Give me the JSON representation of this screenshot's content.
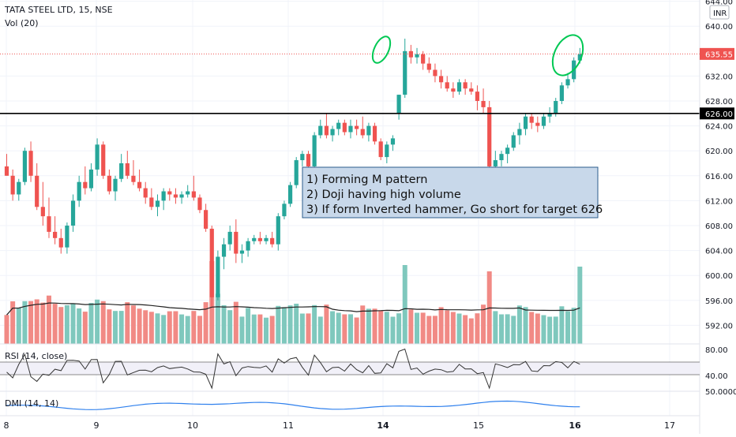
{
  "header": {
    "symbol_label": "TATA STEEL LTD, 15, NSE",
    "volume_label": "Vol (20)",
    "currency_badge": "INR"
  },
  "annotation": {
    "lines": [
      "1) Forming M pattern",
      "2) Doji having high volume",
      "3) If form Inverted hammer, Go short for target 626"
    ]
  },
  "price_tags": {
    "current": "635.55",
    "level": "626.00"
  },
  "panes": {
    "rsi_label": "RSI (14, close)",
    "dmi_label": "DMI (14, 14)",
    "rsi_ticks": [
      "80.00",
      "40.00"
    ],
    "dmi_tick": "50.0000"
  },
  "colors": {
    "up": "#26a69a",
    "down": "#ef5350",
    "vol_up": "#7fc8bd",
    "vol_down": "#f18a85",
    "level_line": "#000000",
    "current_line": "#ef5350",
    "annotation_bg": "#c8d8ea",
    "annotation_border": "#2b5d8c",
    "highlight_circle": "#00c853",
    "dmi_line": "#2f80ed",
    "rsi_line": "#333333"
  },
  "chart_data": {
    "type": "candlestick",
    "x_ticks": [
      "8",
      "9",
      "10",
      "11",
      "14",
      "15",
      "16",
      "17"
    ],
    "y_ticks": [
      644,
      640,
      632,
      628,
      624,
      620,
      616,
      612,
      608,
      604,
      600,
      596,
      592
    ],
    "ylim": [
      590,
      644
    ],
    "horizontal_level": 626.0,
    "current_price": 635.55,
    "candles": [
      [
        617.5,
        619.5,
        616,
        616
      ],
      [
        616,
        617,
        612,
        613
      ],
      [
        613,
        615.5,
        612,
        615
      ],
      [
        615,
        620.5,
        614.5,
        620
      ],
      [
        620,
        621.5,
        615,
        616
      ],
      [
        616,
        618,
        610.5,
        611
      ],
      [
        611,
        615,
        608,
        609.5
      ],
      [
        609.5,
        612.5,
        606,
        607
      ],
      [
        607,
        609.5,
        605,
        606
      ],
      [
        606,
        607.5,
        603.5,
        604.5
      ],
      [
        604.5,
        608.5,
        603.5,
        608
      ],
      [
        608,
        613,
        607,
        612
      ],
      [
        612,
        616,
        611,
        615
      ],
      [
        615,
        617.5,
        613,
        614
      ],
      [
        614,
        618,
        613.5,
        617
      ],
      [
        617,
        622,
        616,
        621
      ],
      [
        621,
        621.5,
        615.5,
        616
      ],
      [
        616,
        617,
        613,
        613.5
      ],
      [
        613.5,
        616,
        612,
        615.5
      ],
      [
        615.5,
        619.5,
        615,
        618
      ],
      [
        618,
        620,
        615.5,
        616
      ],
      [
        616,
        618.5,
        614.5,
        615
      ],
      [
        615,
        617,
        613.5,
        614
      ],
      [
        614,
        615,
        611.5,
        612.5
      ],
      [
        612.5,
        614,
        610.5,
        611
      ],
      [
        611,
        613,
        609.5,
        612
      ],
      [
        612,
        614,
        610.5,
        613.5
      ],
      [
        613.5,
        614,
        612,
        613
      ],
      [
        613,
        614,
        611.5,
        612.5
      ],
      [
        612.5,
        613.5,
        611.5,
        613
      ],
      [
        613,
        614.5,
        612.5,
        613.5
      ],
      [
        613.5,
        616,
        612,
        612.5
      ],
      [
        612.5,
        613,
        610,
        610.5
      ],
      [
        610.5,
        611.5,
        607,
        607.5
      ],
      [
        607.5,
        608,
        595,
        596.5
      ],
      [
        596.5,
        604,
        596,
        603
      ],
      [
        603,
        606,
        601,
        605
      ],
      [
        605,
        608,
        604,
        607
      ],
      [
        607,
        609,
        602,
        603.5
      ],
      [
        603.5,
        605,
        602,
        604
      ],
      [
        604,
        606,
        603,
        605.5
      ],
      [
        605.5,
        606.5,
        605,
        606
      ],
      [
        606,
        607,
        605,
        605.5
      ],
      [
        605.5,
        606.5,
        605,
        606
      ],
      [
        606,
        607,
        604.5,
        605
      ],
      [
        605,
        610,
        604,
        609.5
      ],
      [
        609.5,
        612,
        609,
        611.5
      ],
      [
        611.5,
        615,
        611,
        614.5
      ],
      [
        614.5,
        619,
        614,
        618.5
      ],
      [
        618.5,
        620,
        617.5,
        619.5
      ],
      [
        619.5,
        620,
        617,
        617.5
      ],
      [
        617.5,
        623,
        617,
        622.5
      ],
      [
        622.5,
        625,
        622,
        624
      ],
      [
        624,
        626,
        622,
        622.5
      ],
      [
        622.5,
        624,
        621.5,
        623.5
      ],
      [
        623.5,
        625,
        622.5,
        624.5
      ],
      [
        624.5,
        625,
        622.5,
        623
      ],
      [
        623,
        625,
        622,
        624
      ],
      [
        624,
        625,
        622.5,
        623.5
      ],
      [
        623.5,
        625.5,
        622,
        622.5
      ],
      [
        622.5,
        624.5,
        621.5,
        624
      ],
      [
        624,
        624.5,
        621,
        621.5
      ],
      [
        621.5,
        622,
        618.5,
        619
      ],
      [
        619,
        621.5,
        618,
        621
      ],
      [
        621,
        622.5,
        620,
        622
      ],
      [
        626,
        629,
        625,
        629
      ],
      [
        629,
        638,
        628.5,
        636
      ],
      [
        636,
        637,
        634,
        635
      ],
      [
        635,
        636.5,
        634,
        635.5
      ],
      [
        635.5,
        636,
        633,
        634
      ],
      [
        634,
        635,
        632.5,
        633
      ],
      [
        633,
        634,
        631,
        632
      ],
      [
        632,
        633,
        630,
        631
      ],
      [
        631,
        632,
        629.5,
        630
      ],
      [
        630,
        631,
        628.5,
        629.5
      ],
      [
        629.5,
        631.5,
        629,
        631
      ],
      [
        631,
        631.5,
        629,
        630
      ],
      [
        630,
        631,
        629,
        629.5
      ],
      [
        629.5,
        630.5,
        626.5,
        628
      ],
      [
        628,
        630,
        626,
        627
      ],
      [
        627,
        628,
        613.5,
        617.5
      ],
      [
        617.5,
        620,
        617,
        618.5
      ],
      [
        618.5,
        620,
        617.5,
        619.5
      ],
      [
        619.5,
        621,
        618,
        620.5
      ],
      [
        620.5,
        623,
        620,
        622.5
      ],
      [
        622.5,
        624.5,
        621,
        623.5
      ],
      [
        623.5,
        626,
        622.5,
        625.5
      ],
      [
        625.5,
        626,
        623.5,
        624.5
      ],
      [
        624.5,
        625.5,
        623,
        624
      ],
      [
        624,
        626,
        623.5,
        625.5
      ],
      [
        625.5,
        627,
        624.5,
        626
      ],
      [
        626,
        628.5,
        625.5,
        628
      ],
      [
        628,
        631,
        627.5,
        630.5
      ],
      [
        630.5,
        632.5,
        630,
        631.5
      ],
      [
        631.5,
        635,
        631,
        634.5
      ],
      [
        634.5,
        636.5,
        634,
        635.5
      ]
    ]
  }
}
